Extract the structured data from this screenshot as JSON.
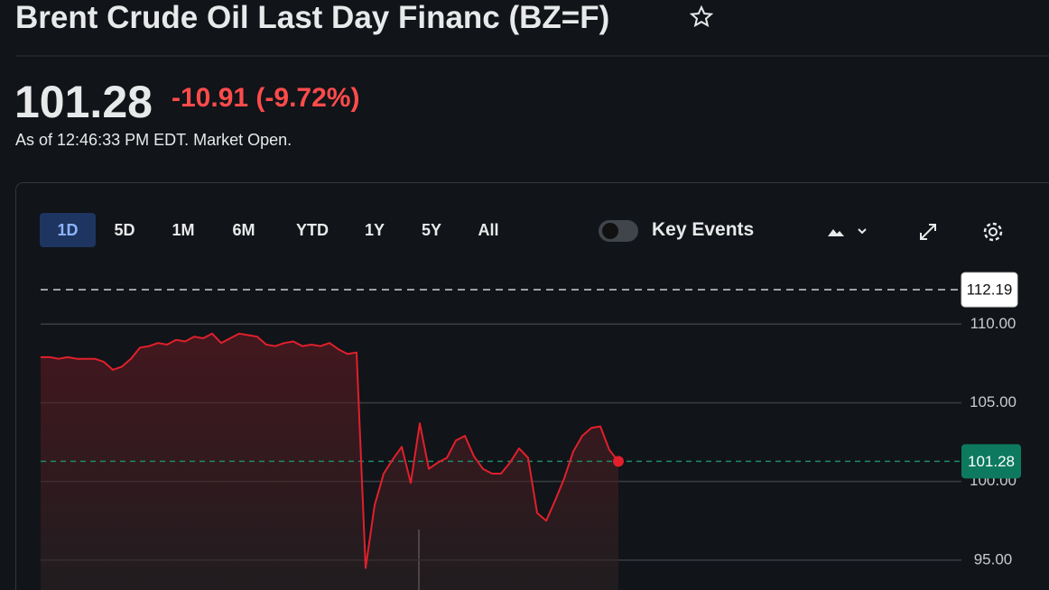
{
  "header": {
    "title": "Brent Crude Oil Last Day Financ (BZ=F)",
    "price": "101.28",
    "change": "-10.91",
    "change_percent": "(-9.72%)",
    "as_of": "As of 12:46:33 PM EDT. Market Open."
  },
  "toolbar": {
    "ranges": [
      "1D",
      "5D",
      "1M",
      "6M",
      "YTD",
      "1Y",
      "5Y",
      "All"
    ],
    "selected": "1D",
    "key_events": "Key Events"
  },
  "chart_data": {
    "type": "line",
    "color": "#e0202c",
    "values": [
      107.9,
      107.9,
      107.8,
      107.9,
      107.8,
      107.8,
      107.8,
      107.6,
      107.1,
      107.3,
      107.8,
      108.5,
      108.6,
      108.8,
      108.7,
      109.0,
      108.9,
      109.2,
      109.1,
      109.4,
      108.8,
      109.1,
      109.4,
      109.3,
      109.2,
      108.7,
      108.6,
      108.8,
      108.9,
      108.6,
      108.7,
      108.6,
      108.8,
      108.4,
      108.1,
      108.2,
      94.5,
      98.5,
      100.5,
      101.4,
      102.2,
      99.9,
      103.7,
      100.8,
      101.2,
      101.5,
      102.6,
      102.9,
      101.6,
      100.8,
      100.5,
      100.5,
      101.2,
      102.1,
      101.5,
      98.0,
      97.5,
      98.8,
      100.2,
      101.9,
      102.9,
      103.4,
      103.5,
      102.0,
      101.28
    ],
    "ylim": [
      93.1,
      113.4
    ],
    "yticks": [
      {
        "value": 95,
        "label": "95.00"
      },
      {
        "value": 100,
        "label": "100.00"
      },
      {
        "value": 105,
        "label": "105.00"
      },
      {
        "value": 110,
        "label": "110.00"
      }
    ],
    "grid": true,
    "previous_close": {
      "value": 112.19,
      "label": "112.19"
    },
    "current": {
      "value": 101.28,
      "label": "101.28"
    }
  }
}
